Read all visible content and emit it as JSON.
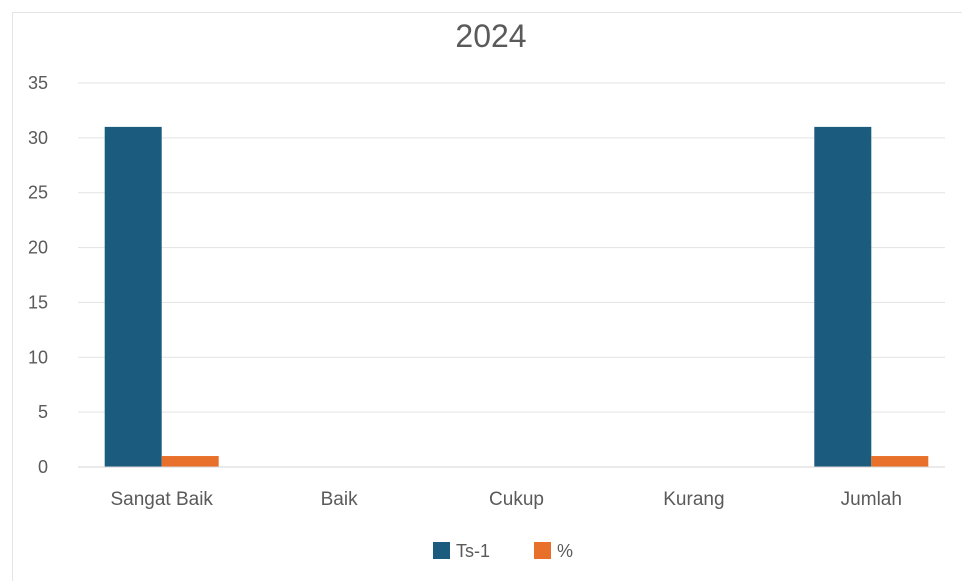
{
  "chart_data": {
    "type": "bar",
    "title": "2024",
    "categories": [
      "Sangat Baik",
      "Baik",
      "Cukup",
      "Kurang",
      "Jumlah"
    ],
    "series": [
      {
        "name": "Ts-1",
        "values": [
          31,
          0,
          0,
          0,
          31
        ],
        "color": "#1b5b7e"
      },
      {
        "name": "%",
        "values": [
          1,
          0,
          0,
          0,
          1
        ],
        "color": "#e8702a"
      }
    ],
    "ylim": [
      0,
      35
    ],
    "yticks": [
      0,
      5,
      10,
      15,
      20,
      25,
      30,
      35
    ],
    "grid": true,
    "legend_position": "bottom",
    "xlabel": "",
    "ylabel": ""
  }
}
